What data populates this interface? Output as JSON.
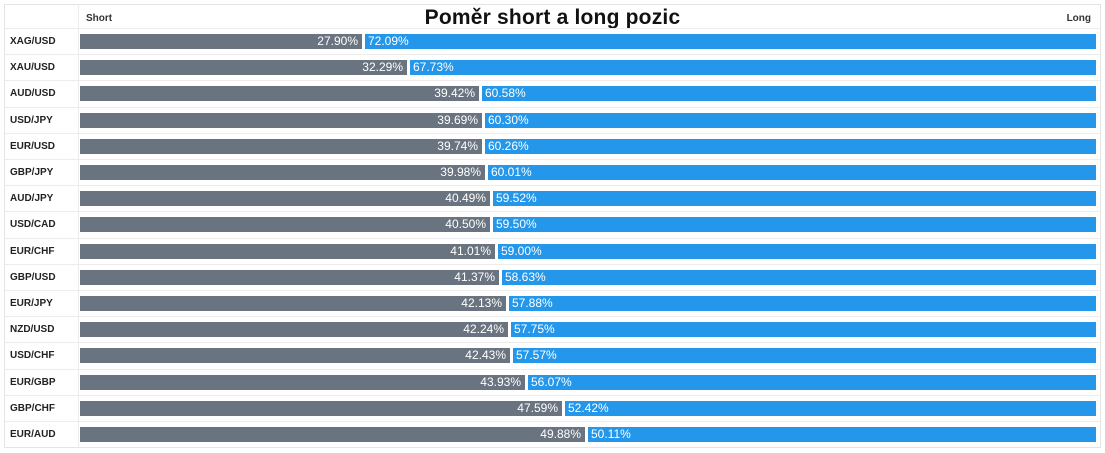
{
  "chart_data": {
    "type": "bar",
    "title": "Poměr short a long pozic",
    "left_header": "Short",
    "right_header": "Long",
    "colors": {
      "short": "#6a7480",
      "long": "#2497ea"
    },
    "categories": [
      "XAG/USD",
      "XAU/USD",
      "AUD/USD",
      "USD/JPY",
      "EUR/USD",
      "GBP/JPY",
      "AUD/JPY",
      "USD/CAD",
      "EUR/CHF",
      "GBP/USD",
      "EUR/JPY",
      "NZD/USD",
      "USD/CHF",
      "EUR/GBP",
      "GBP/CHF",
      "EUR/AUD"
    ],
    "series": [
      {
        "values": [
          27.9,
          32.29,
          39.42,
          39.69,
          39.74,
          39.98,
          40.49,
          40.5,
          41.01,
          41.37,
          42.13,
          42.24,
          42.43,
          43.93,
          47.59,
          49.88
        ],
        "labels": [
          "27.90%",
          "32.29%",
          "39.42%",
          "39.69%",
          "39.74%",
          "39.98%",
          "40.49%",
          "40.50%",
          "41.01%",
          "41.37%",
          "42.13%",
          "42.24%",
          "42.43%",
          "43.93%",
          "47.59%",
          "49.88%"
        ]
      },
      {
        "values": [
          72.09,
          67.73,
          60.58,
          60.3,
          60.26,
          60.01,
          59.52,
          59.5,
          59.0,
          58.63,
          57.88,
          57.75,
          57.57,
          56.07,
          52.42,
          50.11
        ],
        "labels": [
          "72.09%",
          "67.73%",
          "60.58%",
          "60.30%",
          "60.26%",
          "60.01%",
          "59.52%",
          "59.50%",
          "59.00%",
          "58.63%",
          "57.88%",
          "57.75%",
          "57.57%",
          "56.07%",
          "52.42%",
          "50.11%"
        ]
      }
    ]
  }
}
